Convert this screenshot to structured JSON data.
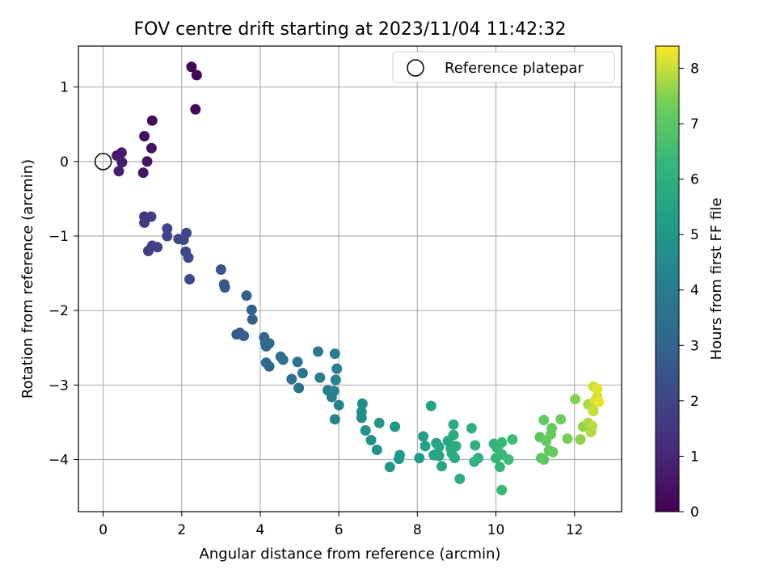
{
  "chart_data": {
    "type": "scatter",
    "title": "FOV centre drift starting at 2023/11/04 11:42:32",
    "xlabel": "Angular distance from reference (arcmin)",
    "ylabel": "Rotation from reference (arcmin)",
    "xlim": [
      -0.63,
      13.2
    ],
    "ylim": [
      -4.7,
      1.55
    ],
    "xticks": [
      0,
      2,
      4,
      6,
      8,
      10,
      12
    ],
    "yticks": [
      -4,
      -3,
      -2,
      -1,
      0,
      1
    ],
    "grid": true,
    "legend": {
      "position": "upper right",
      "entries": [
        "Reference platepar"
      ]
    },
    "reference": {
      "x": 0,
      "y": 0
    },
    "colorbar": {
      "label": "Hours from first FF file",
      "colormap": "viridis",
      "range": [
        0,
        8.4
      ],
      "ticks": [
        0,
        1,
        2,
        3,
        4,
        5,
        6,
        7,
        8
      ]
    },
    "points": [
      [
        2.25,
        1.27,
        0.1
      ],
      [
        2.38,
        1.16,
        0.12
      ],
      [
        2.35,
        0.7,
        0.15
      ],
      [
        1.25,
        0.55,
        0.3
      ],
      [
        1.05,
        0.34,
        0.4
      ],
      [
        1.23,
        0.18,
        0.45
      ],
      [
        1.12,
        0.0,
        0.5
      ],
      [
        1.02,
        -0.15,
        0.55
      ],
      [
        0.35,
        0.08,
        0.65
      ],
      [
        0.47,
        0.12,
        0.7
      ],
      [
        0.48,
        -0.01,
        0.75
      ],
      [
        0.4,
        -0.13,
        0.8
      ],
      [
        1.05,
        -0.74,
        1.6
      ],
      [
        1.05,
        -0.82,
        1.65
      ],
      [
        1.22,
        -0.74,
        1.7
      ],
      [
        1.15,
        -1.2,
        1.75
      ],
      [
        1.25,
        -1.13,
        1.8
      ],
      [
        1.38,
        -1.15,
        1.85
      ],
      [
        1.63,
        -0.9,
        1.9
      ],
      [
        1.63,
        -1.0,
        1.95
      ],
      [
        1.92,
        -1.04,
        2.0
      ],
      [
        2.05,
        -1.05,
        2.0
      ],
      [
        2.12,
        -0.96,
        2.05
      ],
      [
        2.1,
        -1.21,
        2.1
      ],
      [
        2.17,
        -1.29,
        2.15
      ],
      [
        2.2,
        -1.58,
        2.2
      ],
      [
        3.0,
        -1.45,
        2.5
      ],
      [
        3.08,
        -1.65,
        2.55
      ],
      [
        3.1,
        -1.69,
        2.6
      ],
      [
        3.4,
        -2.32,
        2.7
      ],
      [
        3.48,
        -2.3,
        2.75
      ],
      [
        3.58,
        -2.34,
        2.8
      ],
      [
        3.65,
        -1.8,
        2.85
      ],
      [
        3.78,
        -1.99,
        2.9
      ],
      [
        3.8,
        -2.12,
        2.95
      ],
      [
        4.1,
        -2.36,
        3.0
      ],
      [
        4.13,
        -2.43,
        3.05
      ],
      [
        4.15,
        -2.48,
        3.1
      ],
      [
        4.23,
        -2.44,
        3.15
      ],
      [
        4.15,
        -2.7,
        3.2
      ],
      [
        4.23,
        -2.75,
        3.25
      ],
      [
        4.52,
        -2.62,
        3.4
      ],
      [
        4.58,
        -2.66,
        3.45
      ],
      [
        4.8,
        -2.92,
        3.55
      ],
      [
        4.95,
        -2.69,
        3.6
      ],
      [
        4.98,
        -3.04,
        3.65
      ],
      [
        5.08,
        -2.84,
        3.7
      ],
      [
        5.47,
        -2.55,
        3.85
      ],
      [
        5.52,
        -2.9,
        3.9
      ],
      [
        5.72,
        -3.07,
        4.0
      ],
      [
        5.82,
        -3.16,
        4.05
      ],
      [
        5.88,
        -3.08,
        4.1
      ],
      [
        5.9,
        -2.58,
        4.1
      ],
      [
        5.95,
        -2.78,
        4.15
      ],
      [
        5.92,
        -2.93,
        4.15
      ],
      [
        5.9,
        -3.46,
        4.2
      ],
      [
        6.0,
        -3.27,
        4.2
      ],
      [
        6.6,
        -3.25,
        4.6
      ],
      [
        6.58,
        -3.36,
        4.65
      ],
      [
        6.58,
        -3.44,
        4.7
      ],
      [
        6.68,
        -3.61,
        4.75
      ],
      [
        6.82,
        -3.74,
        4.8
      ],
      [
        6.97,
        -3.87,
        4.85
      ],
      [
        7.03,
        -3.51,
        4.9
      ],
      [
        7.3,
        -4.1,
        5.0
      ],
      [
        7.43,
        -3.56,
        5.05
      ],
      [
        7.55,
        -3.94,
        5.1
      ],
      [
        7.53,
        -3.99,
        5.15
      ],
      [
        8.05,
        -3.98,
        5.3
      ],
      [
        8.15,
        -3.69,
        5.35
      ],
      [
        8.2,
        -3.82,
        5.4
      ],
      [
        8.35,
        -3.28,
        5.45
      ],
      [
        8.42,
        -3.94,
        5.5
      ],
      [
        8.48,
        -3.78,
        5.55
      ],
      [
        8.55,
        -3.83,
        5.6
      ],
      [
        8.55,
        -3.95,
        5.6
      ],
      [
        8.62,
        -4.09,
        5.65
      ],
      [
        8.78,
        -3.75,
        5.7
      ],
      [
        8.85,
        -3.85,
        5.75
      ],
      [
        8.88,
        -3.92,
        5.75
      ],
      [
        8.92,
        -3.67,
        5.8
      ],
      [
        8.92,
        -3.53,
        5.8
      ],
      [
        8.98,
        -3.82,
        5.85
      ],
      [
        8.95,
        -3.98,
        5.85
      ],
      [
        9.08,
        -4.26,
        5.9
      ],
      [
        9.38,
        -3.58,
        6.0
      ],
      [
        9.47,
        -3.81,
        6.05
      ],
      [
        9.45,
        -4.03,
        6.05
      ],
      [
        9.55,
        -3.98,
        6.1
      ],
      [
        9.95,
        -3.79,
        6.2
      ],
      [
        10.0,
        -3.98,
        6.25
      ],
      [
        10.02,
        -3.84,
        6.25
      ],
      [
        10.08,
        -3.8,
        6.3
      ],
      [
        10.1,
        -4.1,
        6.3
      ],
      [
        10.15,
        -4.41,
        6.35
      ],
      [
        10.15,
        -3.77,
        6.35
      ],
      [
        10.15,
        -3.93,
        6.4
      ],
      [
        10.32,
        -4.0,
        6.45
      ],
      [
        10.42,
        -3.73,
        6.5
      ],
      [
        11.12,
        -3.7,
        7.0
      ],
      [
        11.15,
        -3.98,
        7.05
      ],
      [
        11.22,
        -4.0,
        7.05
      ],
      [
        11.22,
        -3.47,
        7.1
      ],
      [
        11.28,
        -3.75,
        7.1
      ],
      [
        11.35,
        -3.88,
        7.15
      ],
      [
        11.42,
        -3.58,
        7.15
      ],
      [
        11.4,
        -3.66,
        7.2
      ],
      [
        11.45,
        -3.9,
        7.2
      ],
      [
        11.65,
        -3.46,
        7.3
      ],
      [
        11.82,
        -3.72,
        7.4
      ],
      [
        12.02,
        -3.19,
        7.5
      ],
      [
        12.15,
        -3.73,
        7.55
      ],
      [
        12.22,
        -3.56,
        7.6
      ],
      [
        12.35,
        -3.51,
        7.75
      ],
      [
        12.35,
        -3.26,
        7.8
      ],
      [
        12.42,
        -3.63,
        7.85
      ],
      [
        12.45,
        -3.55,
        7.9
      ],
      [
        12.48,
        -3.35,
        8.0
      ],
      [
        12.48,
        -3.02,
        8.05
      ],
      [
        12.52,
        -3.21,
        8.1
      ],
      [
        12.58,
        -3.15,
        8.15
      ],
      [
        12.58,
        -3.05,
        8.2
      ],
      [
        12.62,
        -3.23,
        8.25
      ]
    ]
  }
}
